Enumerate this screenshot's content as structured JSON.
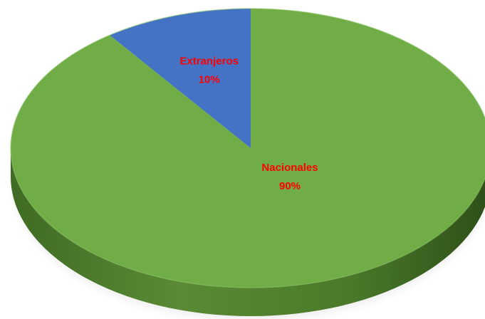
{
  "chart_data": {
    "type": "pie",
    "style": "3d",
    "slices": [
      {
        "label": "Extranjeros",
        "value": 10,
        "value_label": "10%",
        "color": "#4472C4"
      },
      {
        "label": "Nacionales",
        "value": 90,
        "value_label": "90%",
        "color": "#70AD47"
      }
    ],
    "label_color": "#FF0000",
    "legend": "none"
  }
}
